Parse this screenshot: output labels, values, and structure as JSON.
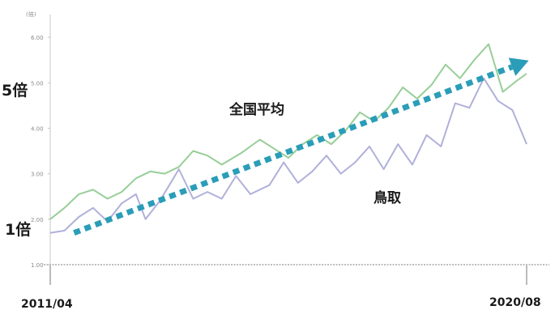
{
  "chart_data": {
    "type": "line",
    "ylim": [
      1.0,
      6.5
    ],
    "y_ticks": [
      "1.00",
      "2.00",
      "3.00",
      "4.00",
      "5.00",
      "6.00"
    ],
    "y_unit_label": "(倍)",
    "x_start_label": "2011/04",
    "x_end_label": "2020/08",
    "y_annotation_high": "5倍",
    "y_annotation_low": "1倍",
    "series": [
      {
        "name": "全国平均",
        "color": "#8cc98c",
        "points": [
          [
            0.0,
            2.0
          ],
          [
            0.03,
            2.25
          ],
          [
            0.06,
            2.55
          ],
          [
            0.09,
            2.65
          ],
          [
            0.12,
            2.45
          ],
          [
            0.15,
            2.6
          ],
          [
            0.18,
            2.9
          ],
          [
            0.21,
            3.05
          ],
          [
            0.24,
            3.0
          ],
          [
            0.27,
            3.15
          ],
          [
            0.3,
            3.5
          ],
          [
            0.33,
            3.4
          ],
          [
            0.36,
            3.2
          ],
          [
            0.4,
            3.45
          ],
          [
            0.44,
            3.75
          ],
          [
            0.47,
            3.55
          ],
          [
            0.5,
            3.35
          ],
          [
            0.53,
            3.65
          ],
          [
            0.56,
            3.85
          ],
          [
            0.59,
            3.65
          ],
          [
            0.62,
            3.95
          ],
          [
            0.65,
            4.35
          ],
          [
            0.68,
            4.15
          ],
          [
            0.71,
            4.45
          ],
          [
            0.74,
            4.9
          ],
          [
            0.77,
            4.65
          ],
          [
            0.8,
            4.95
          ],
          [
            0.83,
            5.4
          ],
          [
            0.86,
            5.1
          ],
          [
            0.89,
            5.5
          ],
          [
            0.92,
            5.85
          ],
          [
            0.95,
            4.8
          ],
          [
            0.98,
            5.05
          ],
          [
            1.0,
            5.2
          ]
        ]
      },
      {
        "name": "鳥取",
        "color": "#a7a7d6",
        "points": [
          [
            0.0,
            1.7
          ],
          [
            0.03,
            1.75
          ],
          [
            0.06,
            2.05
          ],
          [
            0.09,
            2.25
          ],
          [
            0.12,
            1.95
          ],
          [
            0.15,
            2.35
          ],
          [
            0.18,
            2.55
          ],
          [
            0.2,
            2.0
          ],
          [
            0.23,
            2.4
          ],
          [
            0.27,
            3.1
          ],
          [
            0.3,
            2.45
          ],
          [
            0.33,
            2.6
          ],
          [
            0.36,
            2.45
          ],
          [
            0.39,
            2.95
          ],
          [
            0.42,
            2.55
          ],
          [
            0.46,
            2.75
          ],
          [
            0.49,
            3.25
          ],
          [
            0.52,
            2.8
          ],
          [
            0.55,
            3.05
          ],
          [
            0.58,
            3.4
          ],
          [
            0.61,
            3.0
          ],
          [
            0.64,
            3.25
          ],
          [
            0.67,
            3.6
          ],
          [
            0.7,
            3.1
          ],
          [
            0.73,
            3.65
          ],
          [
            0.76,
            3.2
          ],
          [
            0.79,
            3.85
          ],
          [
            0.82,
            3.6
          ],
          [
            0.85,
            4.55
          ],
          [
            0.88,
            4.45
          ],
          [
            0.91,
            5.1
          ],
          [
            0.94,
            4.6
          ],
          [
            0.97,
            4.4
          ],
          [
            1.0,
            3.65
          ]
        ]
      }
    ],
    "annotations": [
      {
        "text": "全国平均"
      },
      {
        "text": "鳥取"
      }
    ],
    "trend_arrow": {
      "from": [
        0.05,
        1.7
      ],
      "to": [
        1.0,
        5.35
      ],
      "color": "#2a9db8"
    }
  }
}
